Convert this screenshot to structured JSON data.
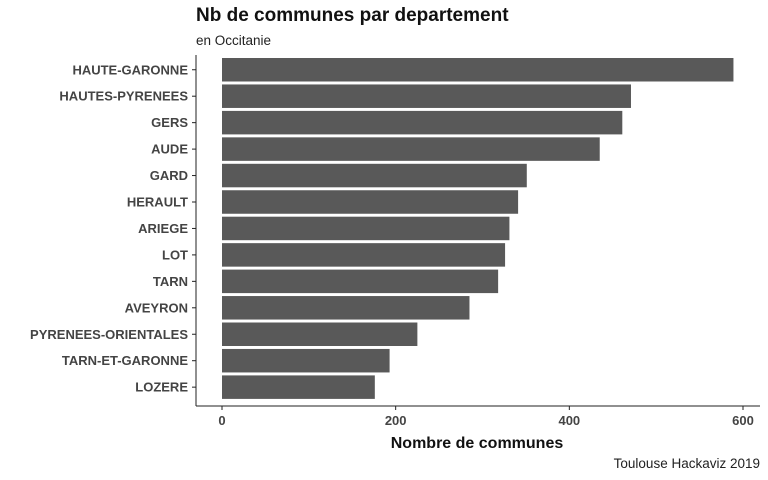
{
  "chart_data": {
    "type": "bar",
    "orientation": "horizontal",
    "title": "Nb de communes par departement",
    "subtitle": "en Occitanie",
    "caption": "Toulouse Hackaviz 2019",
    "xlabel": "Nombre de communes",
    "ylabel": "",
    "xlim": [
      0,
      600
    ],
    "xticks": [
      "0",
      "200",
      "400",
      "600"
    ],
    "grid": false,
    "bar_color": "#595959",
    "categories": [
      "HAUTE-GARONNE",
      "HAUTES-PYRENEES",
      "GERS",
      "AUDE",
      "GARD",
      "HERAULT",
      "ARIEGE",
      "LOT",
      "TARN",
      "AVEYRON",
      "PYRENEES-ORIENTALES",
      "TARN-ET-GARONNE",
      "LOZERE"
    ],
    "values": [
      589,
      471,
      461,
      435,
      351,
      341,
      331,
      326,
      318,
      285,
      225,
      193,
      176
    ]
  }
}
